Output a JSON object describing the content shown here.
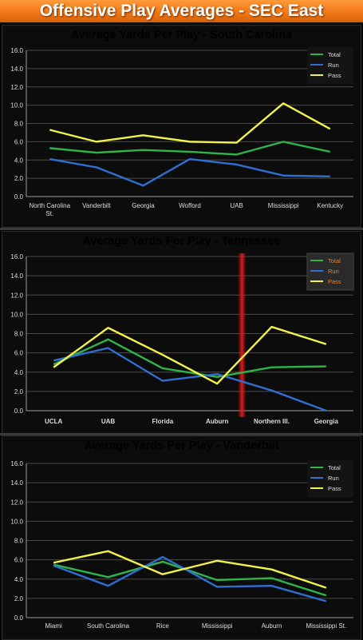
{
  "header": {
    "title": "Offensive Play Averages - SEC East"
  },
  "colors": {
    "total": "#2fb44a",
    "run": "#2f6fd0",
    "pass": "#f2f24a",
    "accent": "#f07818",
    "marker": "#e01818"
  },
  "chart_data": [
    {
      "type": "line",
      "title": "Average Yards Per Play - South Carolina",
      "title_color": "#ffffff",
      "label_color": "#dddddd",
      "categories": [
        "North Carolina St.",
        "Vanderbilt",
        "Georgia",
        "Wofford",
        "UAB",
        "Mississippi",
        "Kentucky"
      ],
      "ylim": [
        0,
        16
      ],
      "yticks": [
        "0.0",
        "2.0",
        "4.0",
        "6.0",
        "8.0",
        "10.0",
        "12.0",
        "14.0",
        "16.0"
      ],
      "grid": true,
      "legend": "top-right",
      "series": [
        {
          "name": "Total",
          "values": [
            5.3,
            4.8,
            5.1,
            4.9,
            4.6,
            6.0,
            4.9
          ]
        },
        {
          "name": "Run",
          "values": [
            4.1,
            3.2,
            1.2,
            4.1,
            3.5,
            2.3,
            2.2
          ]
        },
        {
          "name": "Pass",
          "values": [
            7.3,
            6.0,
            6.7,
            6.0,
            5.9,
            10.2,
            7.4
          ]
        }
      ]
    },
    {
      "type": "line",
      "title": "Average Yards Per Play - Tennessee",
      "title_color": "#e8813a",
      "label_color": "#e8813a",
      "categories": [
        "UCLA",
        "UAB",
        "Florida",
        "Auburn",
        "Northern Ill.",
        "Georgia"
      ],
      "ylim": [
        0,
        16
      ],
      "yticks": [
        "0.0",
        "2.0",
        "4.0",
        "6.0",
        "8.0",
        "10.0",
        "12.0",
        "14.0",
        "16.0"
      ],
      "grid": true,
      "legend": "top-right",
      "series": [
        {
          "name": "Total",
          "values": [
            4.8,
            7.4,
            4.4,
            3.5,
            4.5,
            4.6
          ]
        },
        {
          "name": "Run",
          "values": [
            5.2,
            6.5,
            3.1,
            3.8,
            2.1,
            0.0
          ]
        },
        {
          "name": "Pass",
          "values": [
            4.5,
            8.6,
            5.8,
            2.8,
            8.7,
            6.9
          ]
        }
      ]
    },
    {
      "type": "line",
      "title": "Average Yards Per Play - Vanderbilt",
      "title_color": "#ffffff",
      "label_color": "#dddddd",
      "categories": [
        "Miami",
        "South Carolina",
        "Rice",
        "Mississippi",
        "Auburn",
        "Mississippi St."
      ],
      "ylim": [
        0,
        16
      ],
      "yticks": [
        "0.0",
        "2.0",
        "4.0",
        "6.0",
        "8.0",
        "10.0",
        "12.0",
        "14.0",
        "16.0"
      ],
      "grid": true,
      "legend": "top-right",
      "series": [
        {
          "name": "Total",
          "values": [
            5.5,
            4.2,
            5.8,
            3.9,
            4.1,
            2.3
          ]
        },
        {
          "name": "Run",
          "values": [
            5.4,
            3.3,
            6.3,
            3.2,
            3.3,
            1.7
          ]
        },
        {
          "name": "Pass",
          "values": [
            5.7,
            6.9,
            4.5,
            5.9,
            5.0,
            3.1
          ]
        }
      ]
    }
  ]
}
